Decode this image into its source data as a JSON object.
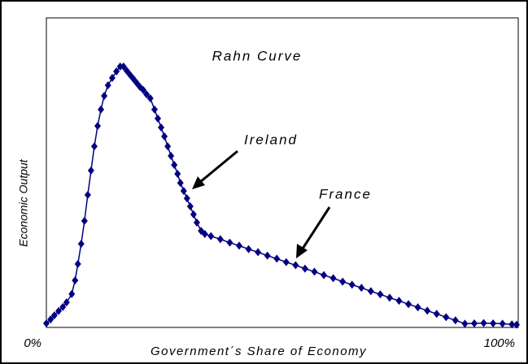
{
  "chart_data": {
    "type": "line",
    "title": "Rahn Curve",
    "x_label": "Government´s Share of Economy",
    "y_label": "Economic Output",
    "annotations": [
      "Ireland",
      "France"
    ],
    "xlim": [
      0,
      100
    ],
    "ylim": [
      0,
      100
    ],
    "xticks": [
      {
        "value": 0,
        "label": "0%"
      },
      {
        "value": 100,
        "label": "100%"
      }
    ],
    "x": [
      0,
      0.9,
      1.7,
      2.6,
      3.5,
      4.3,
      5.4,
      6.1,
      6.7,
      7.4,
      8.1,
      8.8,
      9.5,
      10.2,
      10.9,
      11.6,
      12.3,
      13.1,
      14.0,
      14.9,
      15.7,
      16.4,
      17.1,
      17.8,
      18.5,
      19.2,
      19.9,
      20.6,
      21.3,
      22.1,
      23.0,
      23.7,
      24.4,
      25.1,
      25.8,
      26.5,
      27.2,
      27.9,
      28.5,
      29.2,
      29.9,
      30.6,
      31.3,
      32.0,
      32.9,
      33.7,
      35,
      37,
      39,
      41,
      43,
      45,
      47,
      49,
      51,
      53,
      55,
      57,
      59,
      61,
      63,
      65,
      67,
      69,
      71,
      73,
      75,
      77,
      79,
      81,
      83,
      85,
      87,
      89,
      91,
      93,
      95,
      97,
      99,
      100
    ],
    "series": [
      {
        "name": "Rahn Curve",
        "color": "#000080",
        "values": [
          1.3,
          2.6,
          3.9,
          5.3,
          6.6,
          8.1,
          10.8,
          15.2,
          20.5,
          27.0,
          34.4,
          42.8,
          50.7,
          58.5,
          65.1,
          70.4,
          74.8,
          78.2,
          80.6,
          82.7,
          84.3,
          84.3,
          82.9,
          81.6,
          80.3,
          79.0,
          77.7,
          76.7,
          75.3,
          74.0,
          70.4,
          67.5,
          64.6,
          61.7,
          58.5,
          55.4,
          52.5,
          49.6,
          46.7,
          44.1,
          41.7,
          39.1,
          36.5,
          33.9,
          31.2,
          30.2,
          29.5,
          28.5,
          27.4,
          26.4,
          25.3,
          24.3,
          23.2,
          22.2,
          21.1,
          20.1,
          19.0,
          18.0,
          16.9,
          15.9,
          14.8,
          13.8,
          12.8,
          11.7,
          10.7,
          9.6,
          8.6,
          7.5,
          6.5,
          5.4,
          4.4,
          3.3,
          2.3,
          1.2,
          1.3,
          1.4,
          1.3,
          1.2,
          1.0,
          0.9
        ]
      }
    ]
  }
}
